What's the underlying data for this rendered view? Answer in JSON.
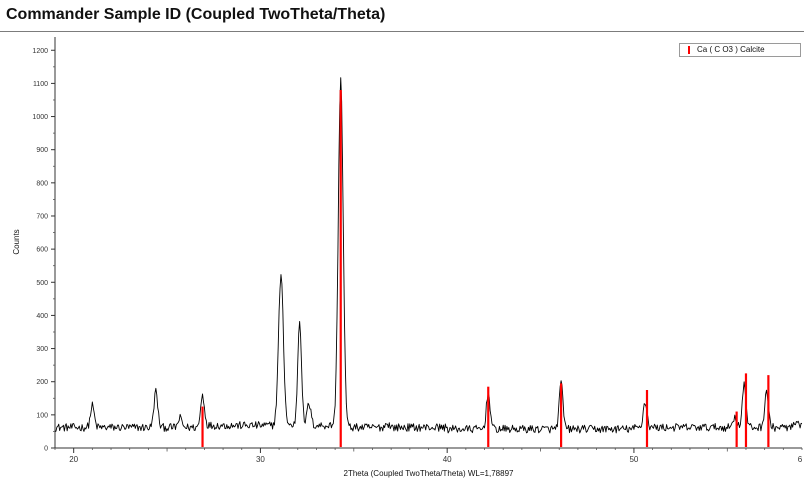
{
  "title": "Commander Sample ID (Coupled TwoTheta/Theta)",
  "chart_data": {
    "type": "line",
    "title": "",
    "xlabel": "2Theta (Coupled TwoTheta/Theta) WL=1,78897",
    "ylabel": "Counts",
    "xlim": [
      19,
      59
    ],
    "ylim": [
      0,
      1240
    ],
    "x_ticks": [
      20,
      30,
      40,
      50
    ],
    "x_tick_labels": [
      "20",
      "30",
      "40",
      "50"
    ],
    "x_tick_overflow_label": "6",
    "y_ticks": [
      0,
      100,
      200,
      300,
      400,
      500,
      600,
      700,
      800,
      900,
      1000,
      1100,
      1200
    ],
    "grid": false,
    "legend": {
      "position": "top-right",
      "entries": [
        "Ca ( C O3 ) Calcite"
      ]
    },
    "series": [
      {
        "name": "",
        "color": "#000000",
        "baseline": 62,
        "noise": 12,
        "peaks": [
          {
            "x": 21.0,
            "y": 128
          },
          {
            "x": 24.4,
            "y": 172
          },
          {
            "x": 25.7,
            "y": 90
          },
          {
            "x": 26.9,
            "y": 160
          },
          {
            "x": 31.1,
            "y": 515
          },
          {
            "x": 32.1,
            "y": 380
          },
          {
            "x": 32.6,
            "y": 128
          },
          {
            "x": 34.3,
            "y": 1118
          },
          {
            "x": 36.8,
            "y": 75
          },
          {
            "x": 42.2,
            "y": 172
          },
          {
            "x": 46.1,
            "y": 200
          },
          {
            "x": 50.6,
            "y": 140
          },
          {
            "x": 55.4,
            "y": 95
          },
          {
            "x": 55.9,
            "y": 190
          },
          {
            "x": 57.1,
            "y": 172
          },
          {
            "x": 58.7,
            "y": 75
          }
        ]
      },
      {
        "name": "Ca ( C O3 ) Calcite",
        "type": "stick",
        "color": "#ff0000",
        "sticks": [
          {
            "x": 26.9,
            "y": 125
          },
          {
            "x": 34.3,
            "y": 1080
          },
          {
            "x": 42.2,
            "y": 185
          },
          {
            "x": 46.1,
            "y": 195
          },
          {
            "x": 50.7,
            "y": 175
          },
          {
            "x": 55.5,
            "y": 110
          },
          {
            "x": 56.0,
            "y": 225
          },
          {
            "x": 57.2,
            "y": 220
          }
        ]
      }
    ]
  }
}
